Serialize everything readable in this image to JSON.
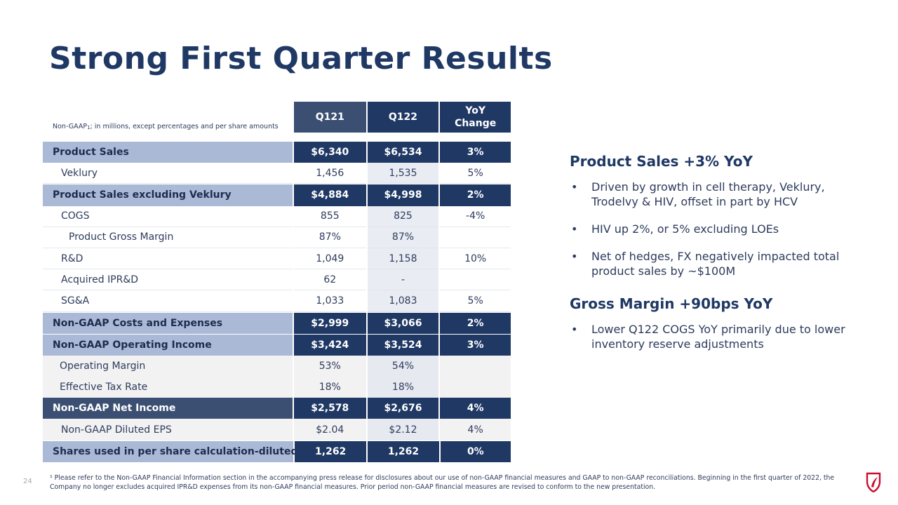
{
  "title": "Strong First Quarter Results",
  "table": {
    "note_prefix": "Non-GAAP",
    "note_sup": "1",
    "note_suffix": "; in millions, except percentages and per share amounts",
    "headers": [
      "Q121",
      "Q122",
      "YoY\nChange"
    ],
    "rows": [
      {
        "label": "Product Sales",
        "q121": "$6,340",
        "q122": "$6,534",
        "yoy": "3%"
      },
      {
        "label": "Veklury",
        "q121": "1,456",
        "q122": "1,535",
        "yoy": "5%"
      },
      {
        "label": "Product Sales excluding Veklury",
        "q121": "$4,884",
        "q122": "$4,998",
        "yoy": "2%"
      },
      {
        "label": "COGS",
        "q121": "855",
        "q122": "825",
        "yoy": "-4%"
      },
      {
        "label": "Product Gross Margin",
        "q121": "87%",
        "q122": "87%",
        "yoy": ""
      },
      {
        "label": "R&D",
        "q121": "1,049",
        "q122": "1,158",
        "yoy": "10%"
      },
      {
        "label": "Acquired IPR&D",
        "q121": "62",
        "q122": "-",
        "yoy": ""
      },
      {
        "label": "SG&A",
        "q121": "1,033",
        "q122": "1,083",
        "yoy": "5%"
      },
      {
        "label": "Non-GAAP Costs and Expenses",
        "q121": "$2,999",
        "q122": "$3,066",
        "yoy": "2%"
      },
      {
        "label": "Non-GAAP Operating Income",
        "q121": "$3,424",
        "q122": "$3,524",
        "yoy": "3%"
      },
      {
        "label": "Operating Margin",
        "q121": "53%",
        "q122": "54%",
        "yoy": ""
      },
      {
        "label": "Effective Tax Rate",
        "q121": "18%",
        "q122": "18%",
        "yoy": ""
      },
      {
        "label": "Non-GAAP Net Income",
        "q121": "$2,578",
        "q122": "$2,676",
        "yoy": "4%"
      },
      {
        "label": "Non-GAAP Diluted EPS",
        "q121": "$2.04",
        "q122": "$2.12",
        "yoy": "4%"
      },
      {
        "label": "Shares used in per share calculation-diluted",
        "q121": "1,262",
        "q122": "1,262",
        "yoy": "0%"
      }
    ]
  },
  "sections": [
    {
      "title": "Product Sales +3% YoY",
      "bullets": [
        "Driven by growth in cell therapy, Veklury, Trodelvy & HIV, offset in part by HCV",
        "HIV up 2%, or 5% excluding LOEs",
        "Net of hedges, FX negatively impacted total product sales by ~$100M"
      ]
    },
    {
      "title": "Gross Margin +90bps YoY",
      "bullets": [
        "Lower Q122 COGS YoY primarily due to lower inventory reserve adjustments"
      ]
    }
  ],
  "footnote": "¹ Please refer to the Non-GAAP Financial Information section in the accompanying press release for disclosures about our use of non-GAAP financial measures and GAAP to non-GAAP reconciliations.  Beginning in the first quarter of 2022, the Company no longer excludes acquired IPR&D expenses from its non-GAAP financial measures. Prior period non-GAAP financial measures are revised to conform to the new presentation.",
  "page_number": "24",
  "colors": {
    "navy": "#1f3864",
    "light_blue": "#a9b9d6",
    "mid_blue": "#3b4f73",
    "logo_red": "#c8102e"
  }
}
